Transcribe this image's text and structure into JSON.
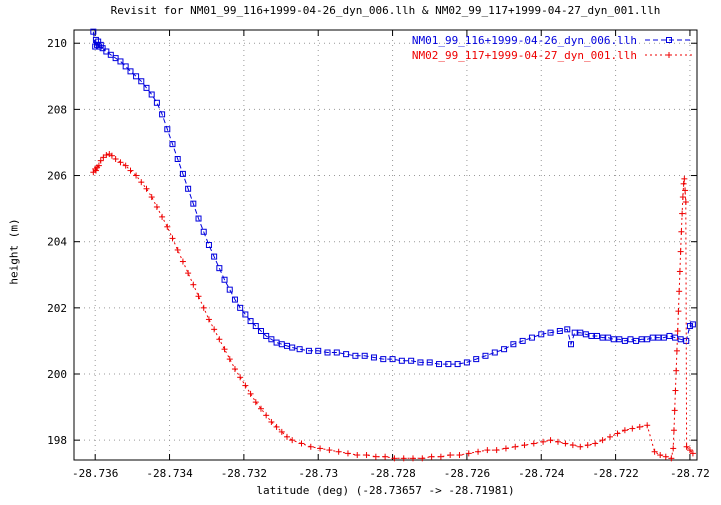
{
  "chart_data": {
    "type": "line",
    "title": "Revisit for NM01_99_116+1999-04-26_dyn_006.llh & NM02_99_117+1999-04-27_dyn_001.llh",
    "xlabel": "latitude (deg) (-28.73657 -> -28.71981)",
    "ylabel": "height (m)",
    "xlim": [
      -28.73657,
      -28.71981
    ],
    "ylim": [
      197.4,
      210.4
    ],
    "xticks": [
      "-28.736",
      "-28.734",
      "-28.732",
      "-28.73",
      "-28.728",
      "-28.726",
      "-28.724",
      "-28.722",
      "-28.72"
    ],
    "yticks": [
      "198",
      "200",
      "202",
      "204",
      "206",
      "208",
      "210"
    ],
    "grid": true,
    "legend_position": "top-right-inside",
    "series": [
      {
        "name": "NM01_99_116+1999-04-26_dyn_006.llh",
        "color": "#0000dd",
        "marker": "square-open",
        "line_style": "dashed",
        "dash": "5,3",
        "points": [
          [
            -28.73605,
            210.35
          ],
          [
            -28.736,
            209.9
          ],
          [
            -28.73598,
            210.1
          ],
          [
            -28.73595,
            209.95
          ],
          [
            -28.73592,
            210.05
          ],
          [
            -28.7359,
            209.9
          ],
          [
            -28.73585,
            209.95
          ],
          [
            -28.7358,
            209.85
          ],
          [
            -28.7357,
            209.75
          ],
          [
            -28.73558,
            209.65
          ],
          [
            -28.73545,
            209.55
          ],
          [
            -28.73532,
            209.45
          ],
          [
            -28.73518,
            209.3
          ],
          [
            -28.73505,
            209.15
          ],
          [
            -28.7349,
            209.0
          ],
          [
            -28.73476,
            208.85
          ],
          [
            -28.73462,
            208.65
          ],
          [
            -28.73448,
            208.45
          ],
          [
            -28.73434,
            208.2
          ],
          [
            -28.7342,
            207.85
          ],
          [
            -28.73406,
            207.4
          ],
          [
            -28.73392,
            206.95
          ],
          [
            -28.73378,
            206.5
          ],
          [
            -28.73364,
            206.05
          ],
          [
            -28.7335,
            205.6
          ],
          [
            -28.73336,
            205.15
          ],
          [
            -28.73322,
            204.7
          ],
          [
            -28.73308,
            204.3
          ],
          [
            -28.73294,
            203.9
          ],
          [
            -28.7328,
            203.55
          ],
          [
            -28.73266,
            203.2
          ],
          [
            -28.73252,
            202.85
          ],
          [
            -28.73238,
            202.55
          ],
          [
            -28.73224,
            202.25
          ],
          [
            -28.7321,
            202.0
          ],
          [
            -28.73196,
            201.8
          ],
          [
            -28.73182,
            201.6
          ],
          [
            -28.73168,
            201.45
          ],
          [
            -28.73154,
            201.3
          ],
          [
            -28.7314,
            201.15
          ],
          [
            -28.73126,
            201.05
          ],
          [
            -28.73112,
            200.95
          ],
          [
            -28.73098,
            200.9
          ],
          [
            -28.73084,
            200.85
          ],
          [
            -28.7307,
            200.8
          ],
          [
            -28.7305,
            200.75
          ],
          [
            -28.73025,
            200.7
          ],
          [
            -28.73,
            200.7
          ],
          [
            -28.72975,
            200.65
          ],
          [
            -28.7295,
            200.65
          ],
          [
            -28.72925,
            200.6
          ],
          [
            -28.729,
            200.55
          ],
          [
            -28.72875,
            200.55
          ],
          [
            -28.7285,
            200.5
          ],
          [
            -28.72825,
            200.45
          ],
          [
            -28.728,
            200.45
          ],
          [
            -28.72775,
            200.4
          ],
          [
            -28.7275,
            200.4
          ],
          [
            -28.72725,
            200.35
          ],
          [
            -28.727,
            200.35
          ],
          [
            -28.72675,
            200.3
          ],
          [
            -28.7265,
            200.3
          ],
          [
            -28.72625,
            200.3
          ],
          [
            -28.726,
            200.35
          ],
          [
            -28.72575,
            200.45
          ],
          [
            -28.7255,
            200.55
          ],
          [
            -28.72525,
            200.65
          ],
          [
            -28.725,
            200.75
          ],
          [
            -28.72475,
            200.9
          ],
          [
            -28.7245,
            201.0
          ],
          [
            -28.72425,
            201.1
          ],
          [
            -28.724,
            201.2
          ],
          [
            -28.72375,
            201.25
          ],
          [
            -28.7235,
            201.3
          ],
          [
            -28.7233,
            201.35
          ],
          [
            -28.7232,
            200.9
          ],
          [
            -28.7231,
            201.25
          ],
          [
            -28.72295,
            201.25
          ],
          [
            -28.7228,
            201.2
          ],
          [
            -28.72265,
            201.15
          ],
          [
            -28.7225,
            201.15
          ],
          [
            -28.72235,
            201.1
          ],
          [
            -28.7222,
            201.1
          ],
          [
            -28.72205,
            201.05
          ],
          [
            -28.7219,
            201.05
          ],
          [
            -28.72175,
            201.0
          ],
          [
            -28.7216,
            201.05
          ],
          [
            -28.72145,
            201.0
          ],
          [
            -28.7213,
            201.05
          ],
          [
            -28.72115,
            201.05
          ],
          [
            -28.721,
            201.1
          ],
          [
            -28.72085,
            201.1
          ],
          [
            -28.7207,
            201.1
          ],
          [
            -28.72055,
            201.15
          ],
          [
            -28.7204,
            201.1
          ],
          [
            -28.72025,
            201.05
          ],
          [
            -28.7201,
            201.0
          ],
          [
            -28.72,
            201.45
          ],
          [
            -28.71992,
            201.5
          ]
        ]
      },
      {
        "name": "NM02_99_117+1999-04-27_dyn_001.llh",
        "color": "#ee0000",
        "marker": "plus",
        "line_style": "dashed",
        "dash": "2,3",
        "points": [
          [
            -28.73605,
            206.1
          ],
          [
            -28.736,
            206.2
          ],
          [
            -28.73598,
            206.15
          ],
          [
            -28.73595,
            206.25
          ],
          [
            -28.7359,
            206.3
          ],
          [
            -28.73585,
            206.45
          ],
          [
            -28.73578,
            206.55
          ],
          [
            -28.7357,
            206.62
          ],
          [
            -28.73562,
            206.65
          ],
          [
            -28.73555,
            206.6
          ],
          [
            -28.73545,
            206.5
          ],
          [
            -28.73532,
            206.4
          ],
          [
            -28.73518,
            206.3
          ],
          [
            -28.73505,
            206.15
          ],
          [
            -28.7349,
            206.0
          ],
          [
            -28.73476,
            205.8
          ],
          [
            -28.73462,
            205.6
          ],
          [
            -28.73448,
            205.35
          ],
          [
            -28.73434,
            205.05
          ],
          [
            -28.7342,
            204.75
          ],
          [
            -28.73406,
            204.45
          ],
          [
            -28.73392,
            204.1
          ],
          [
            -28.73378,
            203.75
          ],
          [
            -28.73364,
            203.4
          ],
          [
            -28.7335,
            203.05
          ],
          [
            -28.73336,
            202.7
          ],
          [
            -28.73322,
            202.35
          ],
          [
            -28.73308,
            202.0
          ],
          [
            -28.73294,
            201.65
          ],
          [
            -28.7328,
            201.35
          ],
          [
            -28.73266,
            201.05
          ],
          [
            -28.73252,
            200.75
          ],
          [
            -28.73238,
            200.45
          ],
          [
            -28.73224,
            200.15
          ],
          [
            -28.7321,
            199.9
          ],
          [
            -28.73196,
            199.65
          ],
          [
            -28.73182,
            199.4
          ],
          [
            -28.73168,
            199.15
          ],
          [
            -28.73154,
            198.95
          ],
          [
            -28.7314,
            198.75
          ],
          [
            -28.73126,
            198.55
          ],
          [
            -28.73112,
            198.4
          ],
          [
            -28.73098,
            198.25
          ],
          [
            -28.73084,
            198.1
          ],
          [
            -28.7307,
            198.0
          ],
          [
            -28.73045,
            197.9
          ],
          [
            -28.7302,
            197.8
          ],
          [
            -28.72995,
            197.75
          ],
          [
            -28.7297,
            197.7
          ],
          [
            -28.72945,
            197.65
          ],
          [
            -28.7292,
            197.6
          ],
          [
            -28.72895,
            197.55
          ],
          [
            -28.7287,
            197.55
          ],
          [
            -28.72845,
            197.5
          ],
          [
            -28.7282,
            197.5
          ],
          [
            -28.72795,
            197.45
          ],
          [
            -28.7277,
            197.45
          ],
          [
            -28.72745,
            197.45
          ],
          [
            -28.7272,
            197.45
          ],
          [
            -28.72695,
            197.5
          ],
          [
            -28.7267,
            197.5
          ],
          [
            -28.72645,
            197.55
          ],
          [
            -28.7262,
            197.55
          ],
          [
            -28.72595,
            197.6
          ],
          [
            -28.7257,
            197.65
          ],
          [
            -28.72545,
            197.7
          ],
          [
            -28.7252,
            197.7
          ],
          [
            -28.72495,
            197.75
          ],
          [
            -28.7247,
            197.8
          ],
          [
            -28.72445,
            197.85
          ],
          [
            -28.7242,
            197.9
          ],
          [
            -28.72395,
            197.95
          ],
          [
            -28.72375,
            198.0
          ],
          [
            -28.72355,
            197.95
          ],
          [
            -28.72335,
            197.9
          ],
          [
            -28.72315,
            197.85
          ],
          [
            -28.72295,
            197.8
          ],
          [
            -28.72275,
            197.85
          ],
          [
            -28.72255,
            197.9
          ],
          [
            -28.72235,
            198.0
          ],
          [
            -28.72215,
            198.1
          ],
          [
            -28.72195,
            198.2
          ],
          [
            -28.72175,
            198.3
          ],
          [
            -28.72155,
            198.35
          ],
          [
            -28.72135,
            198.4
          ],
          [
            -28.72115,
            198.45
          ],
          [
            -28.72095,
            197.65
          ],
          [
            -28.7208,
            197.55
          ],
          [
            -28.72065,
            197.5
          ],
          [
            -28.7205,
            197.45
          ],
          [
            -28.72045,
            197.75
          ],
          [
            -28.72043,
            198.3
          ],
          [
            -28.72041,
            198.9
          ],
          [
            -28.72039,
            199.5
          ],
          [
            -28.72037,
            200.1
          ],
          [
            -28.72035,
            200.7
          ],
          [
            -28.72033,
            201.3
          ],
          [
            -28.72031,
            201.9
          ],
          [
            -28.72029,
            202.5
          ],
          [
            -28.72027,
            203.1
          ],
          [
            -28.72025,
            203.7
          ],
          [
            -28.72023,
            204.3
          ],
          [
            -28.72021,
            204.85
          ],
          [
            -28.72019,
            205.35
          ],
          [
            -28.72017,
            205.75
          ],
          [
            -28.72015,
            205.9
          ],
          [
            -28.72013,
            205.55
          ],
          [
            -28.72011,
            205.2
          ],
          [
            -28.72009,
            197.8
          ],
          [
            -28.72,
            197.7
          ],
          [
            -28.71992,
            197.6
          ]
        ]
      }
    ]
  }
}
